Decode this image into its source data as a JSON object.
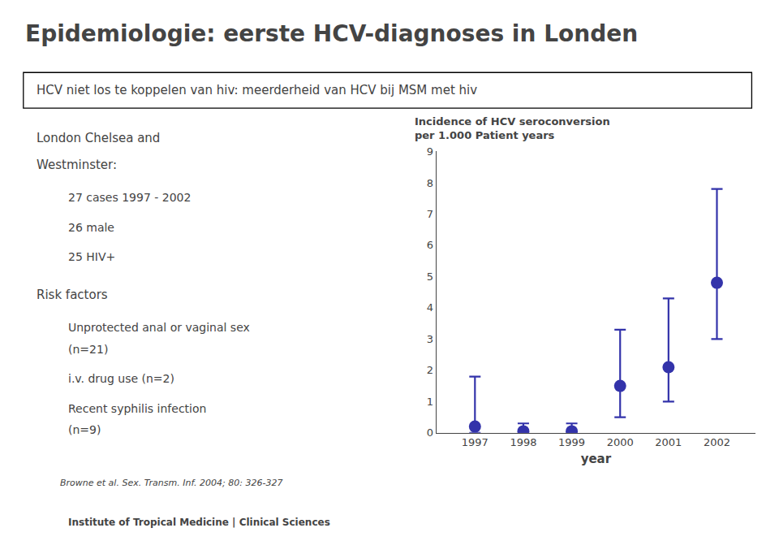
{
  "title": "Epidemiologie: eerste HCV-diagnoses in Londen",
  "subtitle": "HCV niet los te koppelen van hiv: meerderheid van HCV bij MSM met hiv",
  "bullets": [
    {
      "text": [
        "London Chelsea and",
        "Westminster:"
      ],
      "items": [
        [
          "27 cases 1997 - 2002"
        ],
        [
          "26 male"
        ],
        [
          "25 HIV+"
        ]
      ]
    },
    {
      "text": [
        "Risk factors"
      ],
      "items": [
        [
          "Unprotected anal or vaginal sex",
          "(n=21)"
        ],
        [
          "i.v. drug use (n=2)"
        ],
        [
          "Recent syphilis infection",
          "(n=9)"
        ]
      ]
    }
  ],
  "footer": "Browne et al. Sex. Transm. Inf. 2004; 80: 326-327",
  "institute": "Institute of Tropical Medicine | Clinical Sciences",
  "chart_data": {
    "type": "scatter",
    "title": [
      "Incidence of HCV seroconversion",
      "per 1.000 Patient years"
    ],
    "xlabel": "year",
    "x": [
      1997,
      1998,
      1999,
      2000,
      2001,
      2002
    ],
    "values": [
      0.2,
      0.05,
      0.05,
      1.5,
      2.1,
      4.8
    ],
    "err_low": [
      0.2,
      0.05,
      0.05,
      1.0,
      1.1,
      1.8
    ],
    "err_high": [
      1.6,
      0.25,
      0.25,
      1.8,
      2.2,
      3.0
    ],
    "color": "#3333AA",
    "marker": "circle",
    "xlim": [
      1996.2,
      2002.8
    ],
    "xticks": [
      1997,
      1998,
      1999,
      2000,
      2001,
      2002
    ],
    "ylim": [
      0,
      9
    ],
    "yticks": [
      0,
      1,
      2,
      3,
      4,
      5,
      6,
      7,
      8,
      9
    ],
    "grid": false
  }
}
